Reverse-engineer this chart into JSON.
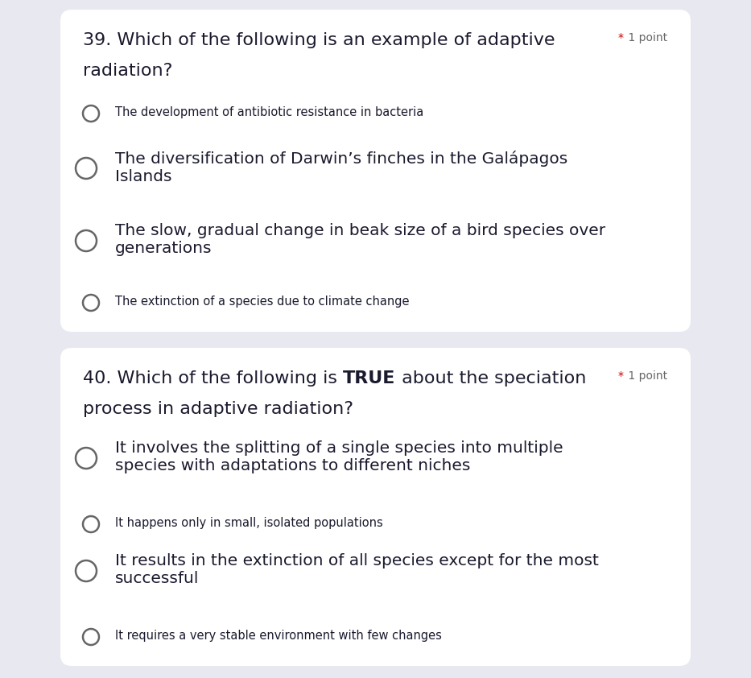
{
  "background_color": "#e8e8f0",
  "card_color": "#ffffff",
  "q1_number": "39.",
  "q1_line1": "Which of the following is an example of adaptive",
  "q1_line2": "radiation?",
  "q1_point_star": "*",
  "q1_point_text": " 1 point",
  "q1_options": [
    {
      "text": "The development of antibiotic resistance in bacteria",
      "large": false
    },
    {
      "text": "The diversification of Darwin’s finches in the Galápagos\nIslands",
      "large": true
    },
    {
      "text": "The slow, gradual change in beak size of a bird species over\ngenerations",
      "large": true
    },
    {
      "text": "The extinction of a species due to climate change",
      "large": false
    }
  ],
  "q2_number": "40.",
  "q2_pre_bold": "Which of the following is ",
  "q2_bold": "TRUE",
  "q2_post_bold": " about the speciation",
  "q2_line2": "process in adaptive radiation?",
  "q2_point_star": "*",
  "q2_point_text": " 1 point",
  "q2_options": [
    {
      "text": "It involves the splitting of a single species into multiple\nspecies with adaptations to different niches",
      "large": true
    },
    {
      "text": "It happens only in small, isolated populations",
      "large": false
    },
    {
      "text": "It results in the extinction of all species except for the most\nsuccessful",
      "large": true
    },
    {
      "text": "It requires a very stable environment with few changes",
      "large": false
    }
  ],
  "text_color": "#1a1a2e",
  "point_star_color": "#cc0000",
  "point_text_color": "#666666",
  "circle_color": "#666666",
  "small_font": 10.5,
  "large_font": 14.5,
  "question_font": 16.0,
  "point_font": 10.0
}
